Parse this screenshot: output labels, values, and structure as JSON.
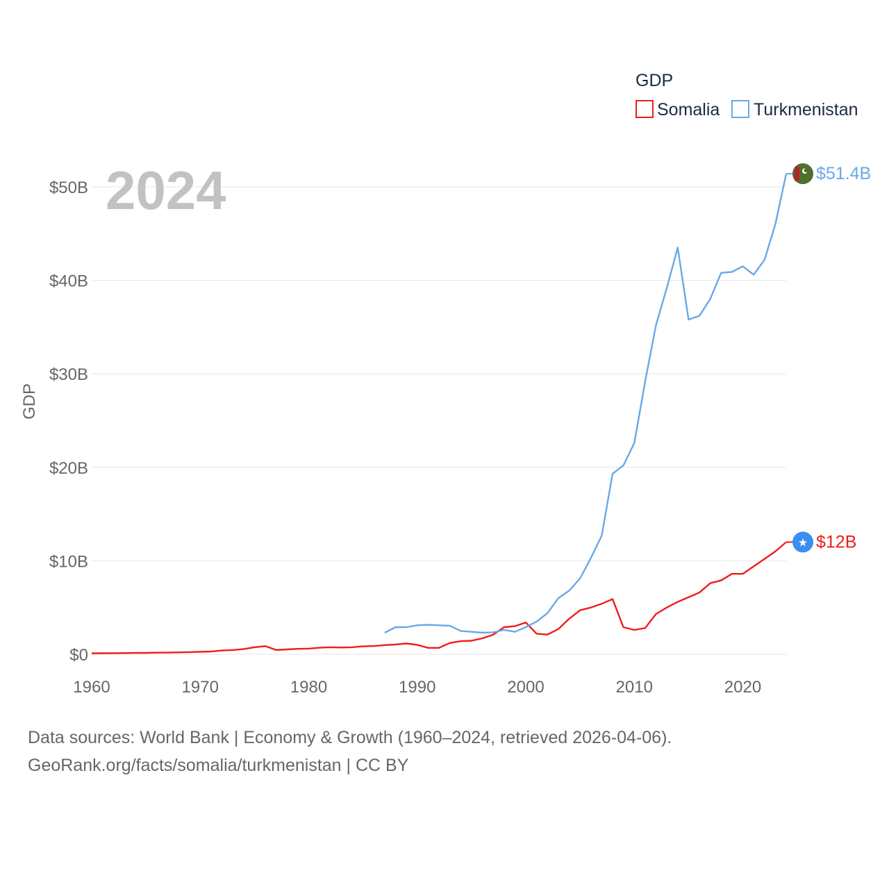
{
  "chart_data": {
    "type": "line",
    "title": "",
    "ylabel": "GDP",
    "xlabel": "",
    "year_label": "2024",
    "xlim": [
      1960,
      2024
    ],
    "ylim": [
      0,
      55
    ],
    "x_ticks": [
      1960,
      1970,
      1980,
      1990,
      2000,
      2010,
      2020
    ],
    "y_ticks": [
      0,
      10,
      20,
      30,
      40,
      50
    ],
    "y_tick_labels": [
      "$0",
      "$10B",
      "$20B",
      "$30B",
      "$40B",
      "$50B"
    ],
    "legend_title": "GDP",
    "legend_position": "top-right",
    "grid": true,
    "series": [
      {
        "name": "Somalia",
        "color": "#ee1c1c",
        "end_label": "$12B",
        "marker": "somalia-flag",
        "x": [
          1960,
          1961,
          1962,
          1963,
          1964,
          1965,
          1966,
          1967,
          1968,
          1969,
          1970,
          1971,
          1972,
          1973,
          1974,
          1975,
          1976,
          1977,
          1978,
          1979,
          1980,
          1981,
          1982,
          1983,
          1984,
          1985,
          1986,
          1987,
          1988,
          1989,
          1990,
          1991,
          1992,
          1993,
          1994,
          1995,
          1996,
          1997,
          1998,
          1999,
          2000,
          2001,
          2002,
          2003,
          2004,
          2005,
          2006,
          2007,
          2008,
          2009,
          2010,
          2011,
          2012,
          2013,
          2014,
          2015,
          2016,
          2017,
          2018,
          2019,
          2020,
          2021,
          2022,
          2023,
          2024
        ],
        "values": [
          0.1,
          0.11,
          0.12,
          0.13,
          0.14,
          0.15,
          0.17,
          0.18,
          0.2,
          0.23,
          0.26,
          0.29,
          0.4,
          0.45,
          0.55,
          0.75,
          0.87,
          0.45,
          0.52,
          0.58,
          0.6,
          0.7,
          0.75,
          0.72,
          0.75,
          0.85,
          0.88,
          0.98,
          1.05,
          1.15,
          1.0,
          0.68,
          0.68,
          1.2,
          1.4,
          1.45,
          1.7,
          2.1,
          2.9,
          3.0,
          3.4,
          2.2,
          2.1,
          2.7,
          3.8,
          4.7,
          5.0,
          5.4,
          5.9,
          2.9,
          2.6,
          2.8,
          4.3,
          5.0,
          5.6,
          6.1,
          6.6,
          7.6,
          7.9,
          8.6,
          8.6,
          9.4,
          10.2,
          11.0,
          12.0
        ]
      },
      {
        "name": "Turkmenistan",
        "color": "#69a7e8",
        "end_label": "$51.4B",
        "marker": "turkmenistan-flag",
        "x": [
          1987,
          1988,
          1989,
          1990,
          1991,
          1992,
          1993,
          1994,
          1995,
          1996,
          1997,
          1998,
          1999,
          2000,
          2001,
          2002,
          2003,
          2004,
          2005,
          2006,
          2007,
          2008,
          2009,
          2010,
          2011,
          2012,
          2013,
          2014,
          2015,
          2016,
          2017,
          2018,
          2019,
          2020,
          2021,
          2022,
          2023,
          2024
        ],
        "values": [
          2.3,
          2.9,
          2.9,
          3.1,
          3.15,
          3.1,
          3.05,
          2.5,
          2.4,
          2.3,
          2.35,
          2.6,
          2.4,
          2.9,
          3.5,
          4.4,
          6.0,
          6.8,
          8.1,
          10.3,
          12.7,
          19.3,
          20.2,
          22.6,
          29.2,
          35.2,
          39.2,
          43.5,
          35.8,
          36.2,
          38.0,
          40.8,
          40.9,
          41.5,
          40.6,
          42.2,
          46.0,
          51.4
        ]
      }
    ]
  },
  "footer": {
    "line1": "Data sources: World Bank | Economy & Growth (1960–2024, retrieved 2026-04-06).",
    "line2": "GeoRank.org/facts/somalia/turkmenistan | CC BY"
  }
}
